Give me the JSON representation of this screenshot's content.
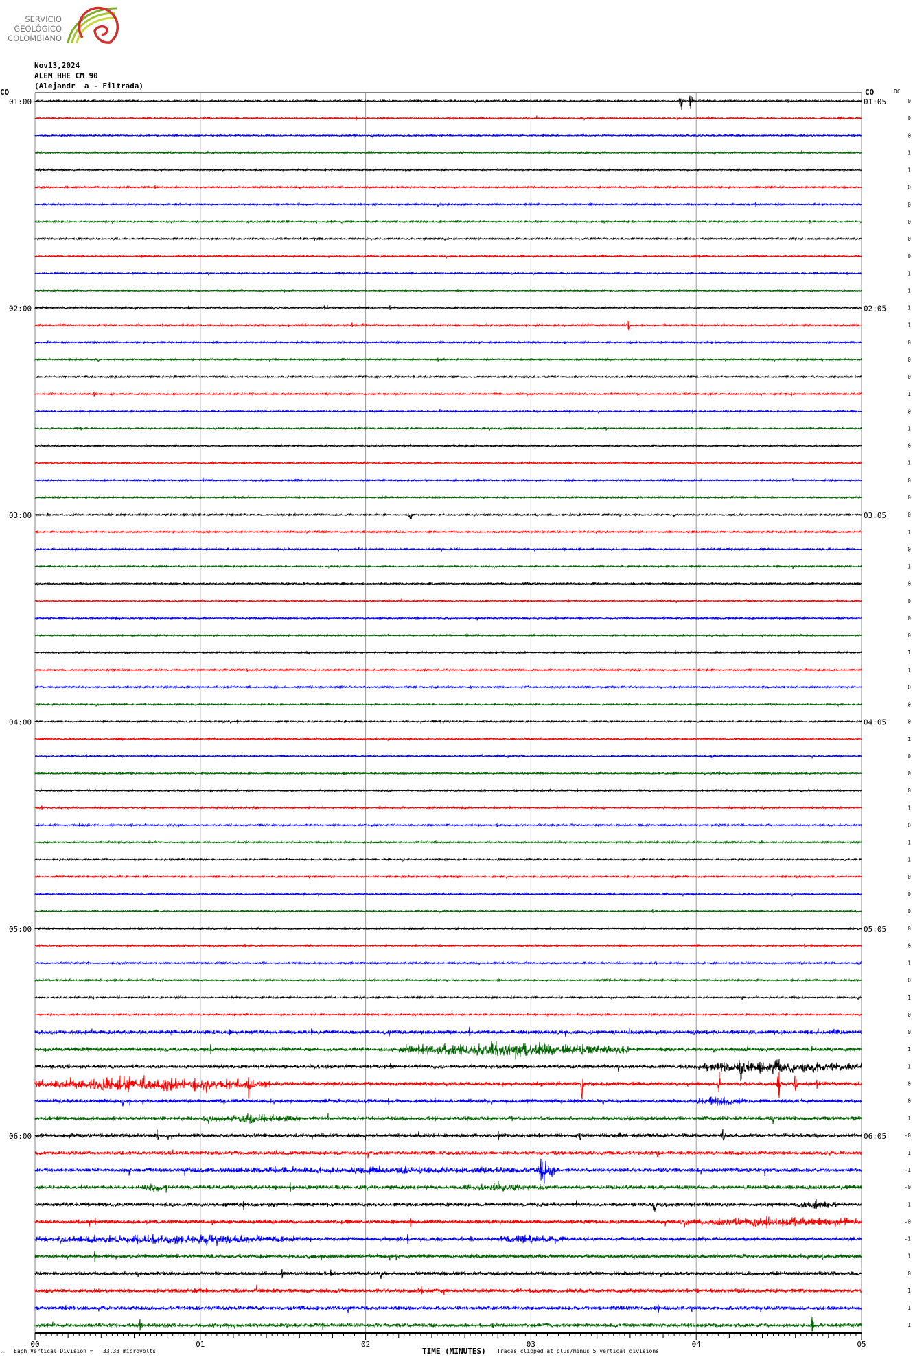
{
  "logo": {
    "line1": "SERVICIO",
    "line2": "GEOLÓGICO",
    "line3": "COLOMBIANO"
  },
  "header": {
    "date": "Nov13,2024",
    "station": "ALEM HHE CM 90",
    "description": "(Alejandr  a - Filtrada)"
  },
  "network_left": "CO",
  "network_right": "CO",
  "dc_header": "DC",
  "footer": {
    "division": "Each Vertical Division =   33.33 microvolts",
    "xlabel": "TIME (MINUTES)",
    "clip_note": "Traces clipped at plus/minus 5 vertical divisions",
    "corner_mark": "^"
  },
  "chart_data": {
    "type": "line",
    "xlabel": "TIME (MINUTES)",
    "xlim": [
      0,
      5
    ],
    "x_ticks": [
      "00",
      "01",
      "02",
      "03",
      "04",
      "05"
    ],
    "grid": "vertical lines each minute",
    "trace_colors": [
      "#000000",
      "#ff0000",
      "#0000ff",
      "#006400"
    ],
    "rows_per_hour": 12,
    "left_hour_labels": [
      "01:00",
      "02:00",
      "03:00",
      "04:00",
      "05:00",
      "06:00"
    ],
    "right_hour_labels": [
      "01:05",
      "02:05",
      "03:05",
      "04:05",
      "05:05",
      "06:05"
    ],
    "dc_offsets": [
      "0",
      "0",
      "0",
      "1",
      "1",
      "0",
      "0",
      "0",
      "0",
      "0",
      "1",
      "1",
      "1",
      "1",
      "0",
      "0",
      "0",
      "1",
      "0",
      "1",
      "0",
      "1",
      "0",
      "0",
      "0",
      "1",
      "0",
      "1",
      "0",
      "0",
      "0",
      "0",
      "1",
      "1",
      "0",
      "0",
      "0",
      "1",
      "0",
      "0",
      "0",
      "1",
      "0",
      "1",
      "1",
      "0",
      "0",
      "0",
      "0",
      "0",
      "1",
      "0",
      "1",
      "0",
      "0",
      "1",
      "1",
      "0",
      "0",
      "1",
      "-0",
      "1",
      "-1",
      "-0",
      "1",
      "-0",
      "-1",
      "1",
      "0",
      "1",
      "1",
      "1"
    ],
    "clip_divisions": 5,
    "events": [
      {
        "row": 0,
        "type": "spike",
        "t": 3.91,
        "amp": 5
      },
      {
        "row": 0,
        "type": "spike",
        "t": 3.97,
        "amp": 5
      },
      {
        "row": 13,
        "type": "spike",
        "t": 3.59,
        "amp": 2.5
      },
      {
        "row": 24,
        "type": "spike",
        "t": 2.27,
        "amp": 2.5
      },
      {
        "row": 55,
        "type": "burst",
        "start": 2.2,
        "end": 3.6,
        "amp": 2.2
      },
      {
        "row": 56,
        "type": "burst",
        "start": 4.0,
        "end": 5.0,
        "amp": 2
      },
      {
        "row": 56,
        "type": "spike",
        "t": 4.27,
        "amp": 3.5
      },
      {
        "row": 57,
        "type": "burst",
        "start": 0.0,
        "end": 1.4,
        "amp": 2.4
      },
      {
        "row": 57,
        "type": "spike",
        "t": 1.29,
        "amp": 4
      },
      {
        "row": 57,
        "type": "spike",
        "t": 3.31,
        "amp": 5
      },
      {
        "row": 57,
        "type": "spike",
        "t": 4.14,
        "amp": 3
      },
      {
        "row": 57,
        "type": "spike",
        "t": 4.5,
        "amp": 4
      },
      {
        "row": 57,
        "type": "spike",
        "t": 4.6,
        "amp": 3.5
      },
      {
        "row": 58,
        "type": "burst",
        "start": 4.0,
        "end": 4.3,
        "amp": 1.2
      },
      {
        "row": 59,
        "type": "burst",
        "start": 1.0,
        "end": 1.6,
        "amp": 1.4
      },
      {
        "row": 60,
        "type": "spike",
        "t": 0.74,
        "amp": 1.5
      },
      {
        "row": 60,
        "type": "spike",
        "t": 4.16,
        "amp": 2.5
      },
      {
        "row": 60,
        "type": "spike",
        "t": 3.3,
        "amp": 1.5
      },
      {
        "row": 62,
        "type": "burst",
        "start": 3.04,
        "end": 3.14,
        "amp": 5
      },
      {
        "row": 62,
        "type": "burst",
        "start": 0.9,
        "end": 3.2,
        "amp": 0.8
      },
      {
        "row": 63,
        "type": "burst",
        "start": 0.65,
        "end": 0.8,
        "amp": 1.5
      },
      {
        "row": 63,
        "type": "burst",
        "start": 2.6,
        "end": 3.1,
        "amp": 0.9
      },
      {
        "row": 64,
        "type": "spike",
        "t": 3.75,
        "amp": 2.2
      },
      {
        "row": 64,
        "type": "burst",
        "start": 4.6,
        "end": 4.85,
        "amp": 1.2
      },
      {
        "row": 65,
        "type": "burst",
        "start": 3.9,
        "end": 5.0,
        "amp": 1.2
      },
      {
        "row": 66,
        "type": "burst",
        "start": 0.0,
        "end": 1.6,
        "amp": 1.4
      },
      {
        "row": 66,
        "type": "burst",
        "start": 2.8,
        "end": 3.2,
        "amp": 1.0
      },
      {
        "row": 71,
        "type": "spike",
        "t": 4.7,
        "amp": 2.2
      }
    ]
  }
}
